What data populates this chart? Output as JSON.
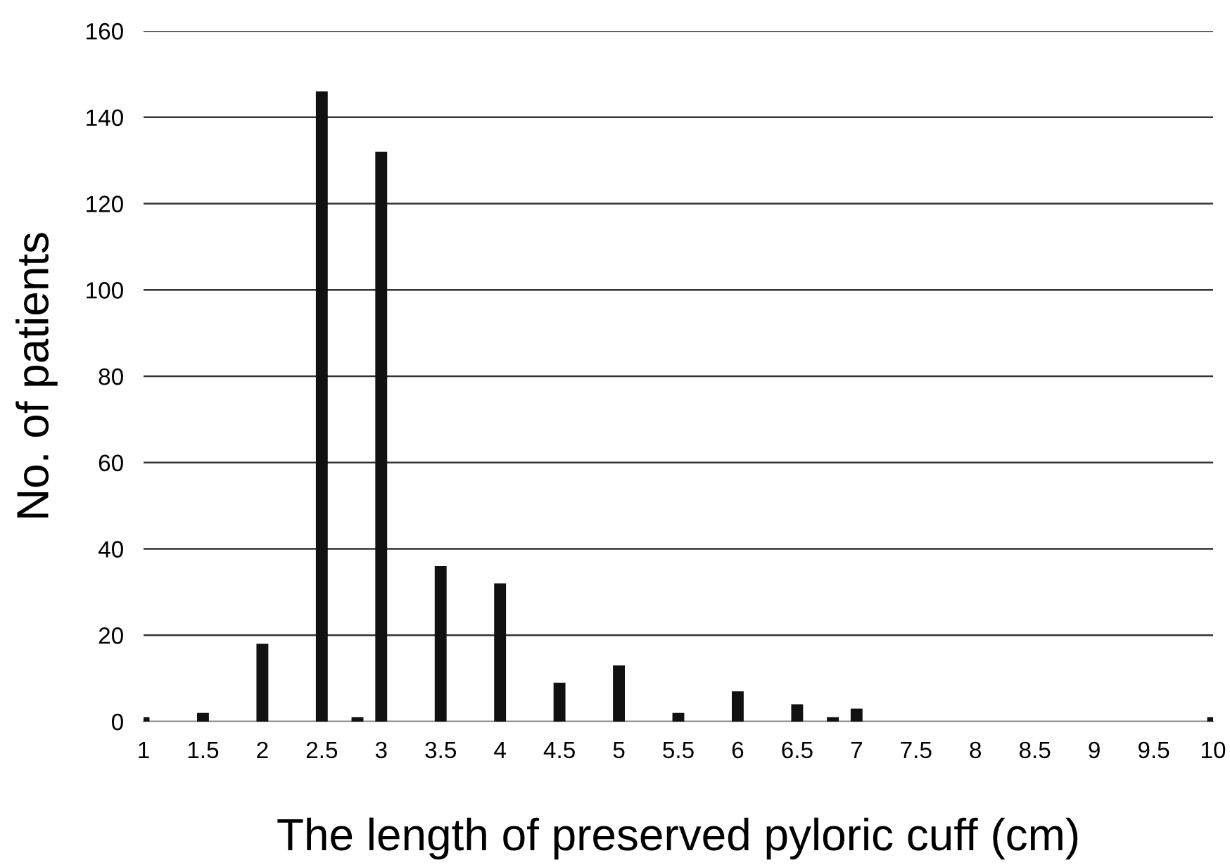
{
  "chart_data": {
    "type": "bar",
    "xlabel": "The length of preserved pyloric cuff (cm)",
    "ylabel": "No. of patients",
    "x": [
      1,
      1.5,
      2,
      2.5,
      2.8,
      3,
      3.5,
      4,
      4.5,
      5,
      5.5,
      6,
      6.5,
      6.8,
      7,
      10
    ],
    "values": [
      1,
      2,
      18,
      146,
      1,
      132,
      36,
      32,
      9,
      13,
      2,
      7,
      4,
      1,
      3,
      1
    ],
    "color": "#111111",
    "xlim": [
      1,
      10
    ],
    "xticks": [
      1,
      1.5,
      2,
      2.5,
      3,
      3.5,
      4,
      4.5,
      5,
      5.5,
      6,
      6.5,
      7,
      7.5,
      8,
      8.5,
      9,
      9.5,
      10
    ],
    "ylim": [
      0,
      160
    ],
    "yticks": [
      0,
      20,
      40,
      60,
      80,
      100,
      120,
      140,
      160
    ],
    "grid": "y",
    "legend": false
  }
}
